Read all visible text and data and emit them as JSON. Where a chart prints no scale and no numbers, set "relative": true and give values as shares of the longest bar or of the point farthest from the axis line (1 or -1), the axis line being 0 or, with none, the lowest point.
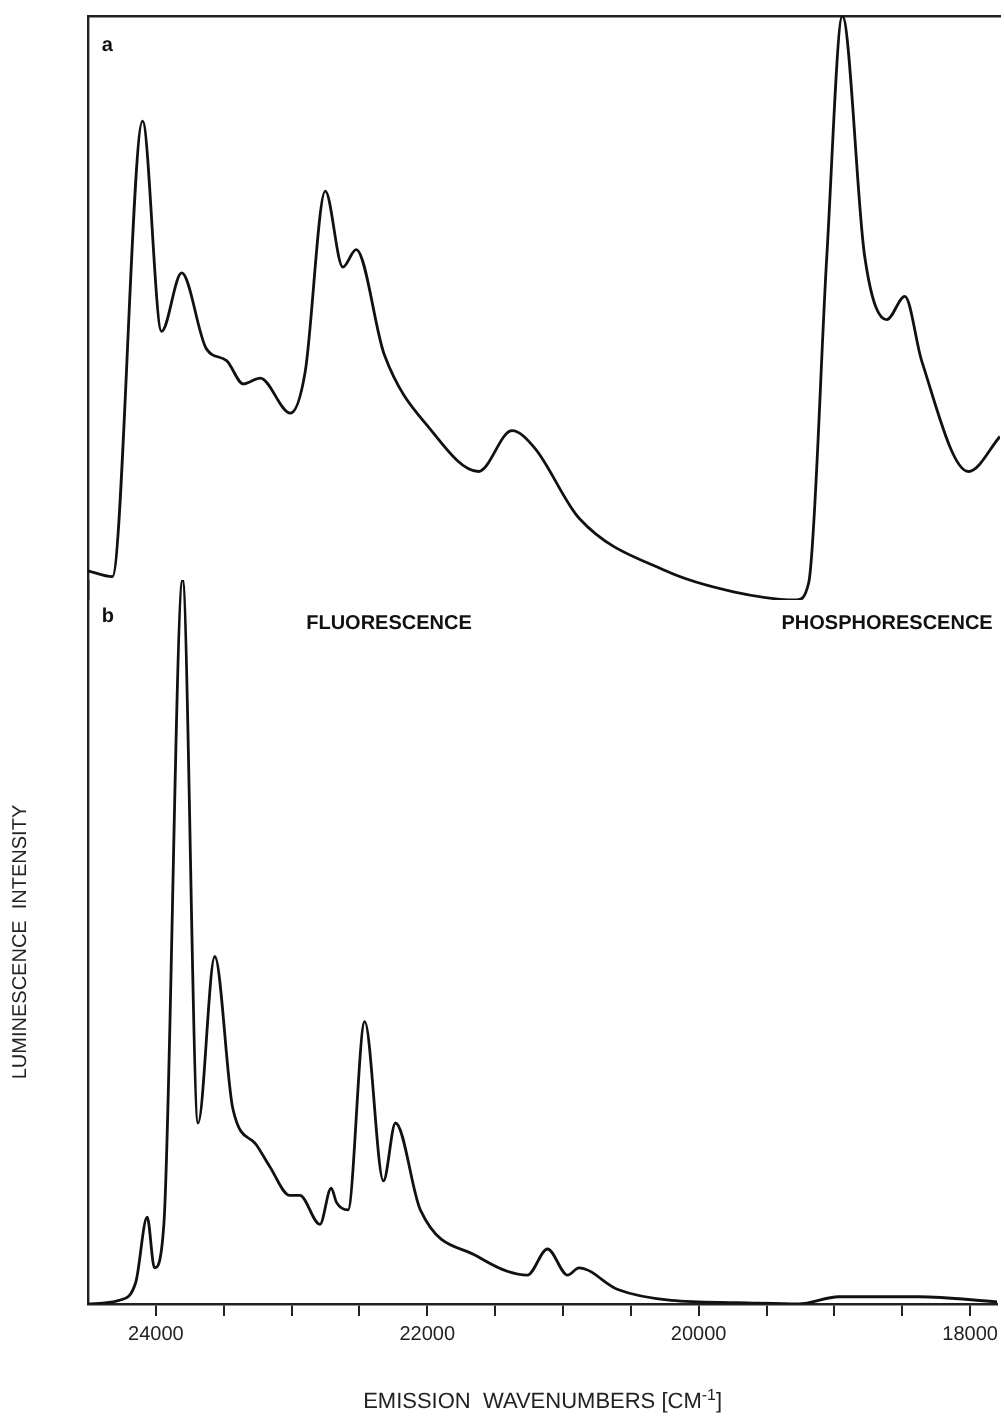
{
  "chart_data": [
    {
      "type": "line",
      "relative": true,
      "xlim": [
        24500,
        17800
      ],
      "tick_labels": false,
      "grid": false,
      "legend": false,
      "line_style": "solid",
      "marker": "none",
      "annotations": [
        "a"
      ],
      "series": [
        {
          "color": "#111111",
          "x": [
            24500,
            24321,
            24099,
            23960,
            23812,
            23630,
            23482,
            23359,
            23235,
            23013,
            22905,
            22757,
            22628,
            22530,
            22323,
            21977,
            21632,
            21385,
            21218,
            20892,
            20256,
            19757,
            19294,
            19205,
            19072,
            18958,
            18795,
            18632,
            18499,
            18376,
            18031,
            17800
          ],
          "values": [
            0.05,
            0.04,
            0.82,
            0.46,
            0.56,
            0.43,
            0.41,
            0.37,
            0.38,
            0.32,
            0.39,
            0.7,
            0.57,
            0.6,
            0.42,
            0.29,
            0.22,
            0.29,
            0.26,
            0.14,
            0.05,
            0.014,
            0,
            0.03,
            0.59,
            1,
            0.59,
            0.48,
            0.52,
            0.41,
            0.22,
            0.28
          ]
        }
      ]
    },
    {
      "type": "line",
      "relative": true,
      "xlim": [
        24500,
        17800
      ],
      "tick_labels": "x",
      "grid": false,
      "legend": false,
      "line_style": "solid",
      "marker": "none",
      "xlabel": "EMISSION  WAVENUMBERS [CM$^{-1}$]",
      "ylabel": "LUMINESCENCE  INTENSITY",
      "xticks": [
        24000,
        {
          "value": 23500,
          "label": null
        },
        {
          "value": 23000,
          "label": null
        },
        {
          "value": 22500,
          "label": null
        },
        22000,
        {
          "value": 21500,
          "label": null
        },
        {
          "value": 21000,
          "label": null
        },
        {
          "value": 20500,
          "label": null
        },
        20000,
        {
          "value": 19500,
          "label": null
        },
        {
          "value": 19000,
          "label": null
        },
        {
          "value": 18500,
          "label": null
        },
        18000
      ],
      "annotations": [
        "b",
        "FLUORESCENCE",
        "PHOSPHORESCENCE"
      ],
      "series": [
        {
          "color": "#111111",
          "x": [
            24500,
            24271,
            24148,
            24064,
            24010,
            23941,
            23803,
            23689,
            23566,
            23433,
            23260,
            23161,
            23013,
            22939,
            22791,
            22708,
            22668,
            22584,
            22461,
            22323,
            22234,
            22051,
            21632,
            21262,
            21114,
            20966,
            20882,
            20596,
            20201,
            19708,
            19264,
            18968,
            18376,
            17800
          ],
          "values": [
            0,
            0.005,
            0.03,
            0.12,
            0.05,
            0.11,
            1,
            0.25,
            0.48,
            0.27,
            0.22,
            0.19,
            0.15,
            0.15,
            0.11,
            0.16,
            0.14,
            0.13,
            0.39,
            0.17,
            0.25,
            0.13,
            0.066,
            0.04,
            0.076,
            0.04,
            0.05,
            0.02,
            0.005,
            0.002,
            0,
            0.01,
            0.01,
            0.003
          ]
        }
      ]
    }
  ]
}
